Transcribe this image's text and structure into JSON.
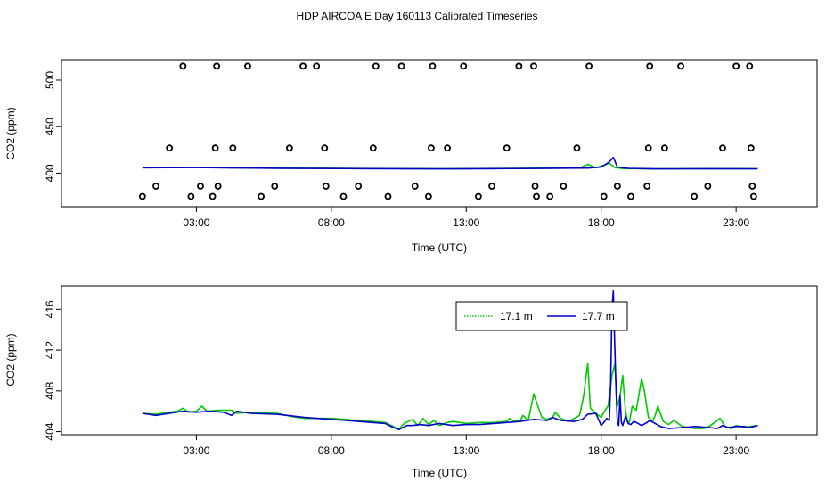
{
  "title": "HDP AIRCOA E  Day 160113  Calibrated Timeseries",
  "chart_data": [
    {
      "type": "line+scatter",
      "xlabel": "Time (UTC)",
      "ylabel": "CO2 (ppm)",
      "x_unit": "hours UTC",
      "xlim": [
        -2.0,
        26.0
      ],
      "ylim": [
        364,
        522
      ],
      "x_ticks": [
        {
          "value": 3,
          "label": "03:00"
        },
        {
          "value": 8,
          "label": "08:00"
        },
        {
          "value": 13,
          "label": "13:00"
        },
        {
          "value": 18,
          "label": "18:00"
        },
        {
          "value": 23,
          "label": "23:00"
        }
      ],
      "y_ticks": [
        {
          "value": 400,
          "label": "400"
        },
        {
          "value": 450,
          "label": "450"
        },
        {
          "value": 500,
          "label": "500"
        }
      ],
      "line_series": [
        {
          "color": "#00cc00",
          "x": [
            1.0,
            3.0,
            6.0,
            9.0,
            12.0,
            15.0,
            17.2,
            17.5,
            17.8,
            18.1,
            18.3,
            18.5,
            18.8,
            20.0,
            22.0,
            23.8
          ],
          "y": [
            405.8,
            406.1,
            405.4,
            405.0,
            404.7,
            405.1,
            405.6,
            409.5,
            405.8,
            408.5,
            410.6,
            406.0,
            405.0,
            404.5,
            404.8,
            404.7
          ]
        },
        {
          "color": "#0000cc",
          "x": [
            1.0,
            3.0,
            6.0,
            9.0,
            12.0,
            15.0,
            17.5,
            18.0,
            18.3,
            18.45,
            18.6,
            19.0,
            20.0,
            22.0,
            23.8
          ],
          "y": [
            405.8,
            406.0,
            405.3,
            404.9,
            404.6,
            405.0,
            405.5,
            406.5,
            412.0,
            417.0,
            406.5,
            405.2,
            404.6,
            404.8,
            404.7
          ]
        }
      ],
      "calibration_points": {
        "x": [
          1.0,
          1.5,
          2.0,
          2.5,
          2.8,
          3.15,
          3.6,
          3.7,
          3.75,
          3.8,
          4.35,
          4.9,
          5.4,
          5.9,
          6.45,
          6.95,
          7.45,
          7.75,
          7.8,
          8.45,
          9.0,
          9.55,
          9.65,
          10.1,
          10.6,
          11.1,
          11.6,
          11.7,
          11.75,
          12.3,
          12.9,
          13.45,
          13.95,
          14.5,
          14.95,
          15.5,
          15.55,
          15.6,
          16.1,
          16.6,
          17.1,
          17.55,
          18.1,
          18.6,
          19.1,
          19.7,
          19.75,
          19.8,
          20.35,
          20.95,
          21.45,
          21.95,
          22.5,
          23.0,
          23.5,
          23.55,
          23.6,
          23.65
        ],
        "y": [
          375,
          386,
          427,
          515,
          375,
          386,
          375,
          427,
          515,
          386,
          427,
          515,
          375,
          386,
          427,
          515,
          515,
          427,
          386,
          375,
          386,
          427,
          515,
          375,
          515,
          386,
          375,
          427,
          515,
          427,
          515,
          375,
          386,
          427,
          515,
          515,
          386,
          375,
          375,
          386,
          427,
          515,
          375,
          386,
          375,
          386,
          427,
          515,
          427,
          515,
          375,
          386,
          427,
          515,
          515,
          427,
          386,
          375
        ]
      }
    },
    {
      "type": "line",
      "xlabel": "Time (UTC)",
      "ylabel": "CO2 (ppm)",
      "x_unit": "hours UTC",
      "xlim": [
        -2.0,
        26.0
      ],
      "ylim": [
        403.7,
        418.3
      ],
      "x_ticks": [
        {
          "value": 3,
          "label": "03:00"
        },
        {
          "value": 8,
          "label": "08:00"
        },
        {
          "value": 13,
          "label": "13:00"
        },
        {
          "value": 18,
          "label": "18:00"
        },
        {
          "value": 23,
          "label": "23:00"
        }
      ],
      "y_ticks": [
        {
          "value": 404,
          "label": "404"
        },
        {
          "value": 408,
          "label": "408"
        },
        {
          "value": 412,
          "label": "412"
        },
        {
          "value": 416,
          "label": "416"
        }
      ],
      "legend": {
        "position": "top-right",
        "entries": [
          {
            "label": "17.1 m",
            "color": "#00cc00",
            "style": "dotted"
          },
          {
            "label": "17.7 m",
            "color": "#0000cc",
            "style": "solid"
          }
        ]
      },
      "series": [
        {
          "name": "17.1 m",
          "color": "#00cc00",
          "x": [
            1.0,
            1.5,
            2.0,
            2.3,
            2.5,
            2.7,
            3.0,
            3.2,
            3.4,
            3.8,
            4.3,
            4.5,
            5.0,
            6.0,
            6.5,
            7.0,
            7.5,
            8.0,
            8.5,
            9.0,
            9.5,
            10.0,
            10.3,
            10.5,
            10.7,
            11.0,
            11.2,
            11.4,
            11.6,
            11.8,
            12.0,
            12.3,
            12.5,
            13.0,
            13.5,
            14.0,
            14.5,
            14.6,
            14.8,
            15.0,
            15.1,
            15.3,
            15.5,
            15.8,
            16.0,
            16.2,
            16.3,
            16.5,
            16.8,
            17.0,
            17.2,
            17.35,
            17.5,
            17.6,
            17.8,
            18.0,
            18.1,
            18.25,
            18.4,
            18.5,
            18.6,
            18.7,
            18.8,
            18.9,
            19.0,
            19.05,
            19.15,
            19.3,
            19.5,
            19.6,
            19.75,
            19.9,
            20.0,
            20.1,
            20.3,
            20.5,
            20.7,
            21.0,
            21.5,
            21.8,
            22.0,
            22.2,
            22.4,
            22.6,
            22.8,
            23.0,
            23.3,
            23.5,
            23.8
          ],
          "y": [
            405.8,
            405.7,
            405.9,
            406.0,
            406.3,
            405.9,
            406.0,
            406.5,
            406.0,
            406.1,
            406.1,
            405.8,
            405.9,
            405.8,
            405.5,
            405.3,
            405.3,
            405.3,
            405.2,
            405.1,
            405.0,
            404.9,
            404.5,
            404.2,
            404.8,
            405.2,
            404.6,
            405.3,
            404.7,
            405.1,
            404.6,
            404.9,
            405.0,
            404.8,
            404.9,
            404.9,
            405.0,
            405.3,
            405.0,
            405.1,
            405.6,
            405.1,
            407.7,
            405.4,
            405.2,
            405.4,
            405.9,
            405.3,
            405.0,
            405.3,
            405.6,
            407.5,
            410.7,
            406.3,
            405.8,
            405.4,
            405.9,
            406.5,
            409.5,
            410.6,
            406.5,
            407.5,
            409.5,
            406.0,
            404.8,
            405.0,
            406.5,
            406.1,
            409.2,
            408.0,
            405.4,
            405.0,
            405.6,
            406.5,
            405.0,
            404.7,
            405.1,
            404.5,
            404.3,
            404.3,
            404.5,
            404.9,
            405.3,
            404.5,
            404.3,
            404.6,
            404.4,
            404.5,
            404.6
          ]
        },
        {
          "name": "17.7 m",
          "color": "#0000cc",
          "x": [
            1.0,
            1.5,
            2.0,
            2.5,
            3.0,
            3.5,
            4.0,
            4.3,
            4.5,
            5.0,
            6.0,
            7.0,
            8.0,
            9.0,
            10.0,
            10.3,
            10.5,
            10.8,
            11.0,
            11.3,
            11.6,
            12.0,
            12.5,
            13.0,
            13.5,
            14.0,
            14.5,
            15.0,
            15.5,
            16.0,
            16.2,
            16.5,
            17.0,
            17.3,
            17.5,
            17.8,
            18.0,
            18.1,
            18.2,
            18.3,
            18.35,
            18.4,
            18.45,
            18.5,
            18.55,
            18.6,
            18.65,
            18.7,
            18.75,
            18.8,
            18.9,
            19.0,
            19.1,
            19.2,
            19.3,
            19.5,
            19.7,
            19.8,
            20.0,
            20.2,
            20.5,
            21.0,
            21.5,
            22.0,
            22.3,
            22.5,
            22.7,
            23.0,
            23.3,
            23.5,
            23.8
          ],
          "y": [
            405.8,
            405.6,
            405.8,
            406.0,
            405.9,
            406.0,
            405.9,
            405.6,
            406.0,
            405.8,
            405.7,
            405.4,
            405.2,
            405.0,
            404.8,
            404.4,
            404.2,
            404.6,
            404.6,
            404.7,
            404.6,
            404.8,
            404.6,
            404.7,
            404.7,
            404.8,
            404.9,
            405.0,
            405.2,
            405.1,
            405.4,
            405.1,
            405.0,
            405.2,
            405.7,
            405.8,
            404.6,
            404.9,
            405.3,
            405.1,
            408.5,
            416.0,
            417.8,
            412.5,
            408.0,
            404.8,
            404.6,
            407.5,
            404.9,
            404.6,
            405.5,
            404.8,
            404.7,
            405.0,
            404.9,
            404.6,
            404.9,
            405.1,
            404.8,
            404.5,
            404.3,
            404.4,
            404.5,
            404.4,
            404.3,
            404.6,
            404.4,
            404.5,
            404.5,
            404.4,
            404.6
          ]
        }
      ]
    }
  ]
}
